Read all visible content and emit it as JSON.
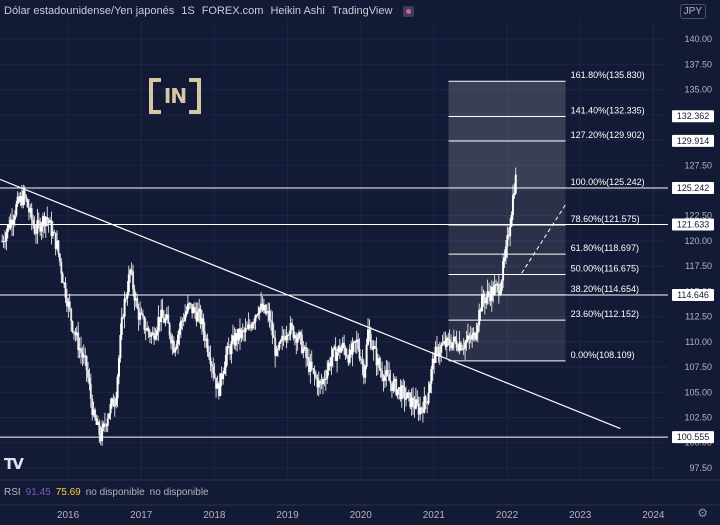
{
  "header": {
    "pair": "Dólar estadounidense/Yen japonés",
    "interval": "1S",
    "exchange": "FOREX.com",
    "chart_style": "Heikin Ashi",
    "platform": "TradingView"
  },
  "currency": "JPY",
  "logo_text": "IN",
  "watermark": "TV",
  "rsi": {
    "label": "RSI",
    "value1": "91.45",
    "value2": "75.69",
    "na1": "no disponible",
    "na2": "no disponible"
  },
  "colors": {
    "background": "#131a35",
    "up_candle": "#ffffff",
    "down_candle": "#ffffff",
    "fib_zone": "#ffffff",
    "lines": "#ffffff",
    "price_label_bg": "#ffffff",
    "price_label_text": "#131a35",
    "grid": "#1d2546"
  },
  "chart_data": {
    "type": "candlestick",
    "x_ticks": [
      "2016",
      "2017",
      "2018",
      "2019",
      "2020",
      "2021",
      "2022",
      "2023",
      "2024"
    ],
    "y_ticks": [
      "97.50",
      "100.00",
      "102.50",
      "105.00",
      "107.50",
      "110.00",
      "112.50",
      "115.00",
      "117.50",
      "120.00",
      "122.50",
      "125.00",
      "127.50",
      "130.00",
      "132.50",
      "135.00",
      "137.50",
      "140.00"
    ],
    "ylim": [
      96.5,
      141.9
    ],
    "xlim": [
      2015.22,
      2024.35
    ],
    "grid": true,
    "close_series": [
      [
        2015.25,
        120.0
      ],
      [
        2015.45,
        123.5
      ],
      [
        2015.55,
        124.5
      ],
      [
        2015.7,
        121.0
      ],
      [
        2015.85,
        122.5
      ],
      [
        2016.0,
        119.5
      ],
      [
        2016.1,
        115.5
      ],
      [
        2016.2,
        112.0
      ],
      [
        2016.3,
        109.5
      ],
      [
        2016.4,
        107.5
      ],
      [
        2016.5,
        102.5
      ],
      [
        2016.6,
        100.5
      ],
      [
        2016.7,
        103.0
      ],
      [
        2016.8,
        104.5
      ],
      [
        2016.9,
        113.0
      ],
      [
        2017.0,
        117.0
      ],
      [
        2017.1,
        113.0
      ],
      [
        2017.2,
        111.5
      ],
      [
        2017.3,
        110.5
      ],
      [
        2017.4,
        112.5
      ],
      [
        2017.5,
        112.0
      ],
      [
        2017.6,
        109.5
      ],
      [
        2017.7,
        112.0
      ],
      [
        2017.8,
        113.5
      ],
      [
        2017.95,
        112.5
      ],
      [
        2018.1,
        108.5
      ],
      [
        2018.2,
        105.0
      ],
      [
        2018.3,
        108.5
      ],
      [
        2018.45,
        110.5
      ],
      [
        2018.6,
        111.0
      ],
      [
        2018.75,
        113.5
      ],
      [
        2018.9,
        112.5
      ],
      [
        2019.0,
        108.5
      ],
      [
        2019.15,
        111.5
      ],
      [
        2019.3,
        110.5
      ],
      [
        2019.45,
        107.5
      ],
      [
        2019.6,
        105.5
      ],
      [
        2019.75,
        108.5
      ],
      [
        2019.9,
        109.5
      ],
      [
        2020.0,
        108.5
      ],
      [
        2020.1,
        110.0
      ],
      [
        2020.2,
        107.0
      ],
      [
        2020.25,
        111.0
      ],
      [
        2020.4,
        107.5
      ],
      [
        2020.55,
        106.0
      ],
      [
        2020.7,
        105.0
      ],
      [
        2020.85,
        104.0
      ],
      [
        2020.95,
        103.3
      ],
      [
        2021.05,
        104.2
      ],
      [
        2021.15,
        108.5
      ],
      [
        2021.25,
        109.5
      ],
      [
        2021.4,
        110.0
      ],
      [
        2021.55,
        109.8
      ],
      [
        2021.7,
        110.5
      ],
      [
        2021.8,
        114.0
      ],
      [
        2021.95,
        115.0
      ],
      [
        2022.05,
        115.5
      ],
      [
        2022.13,
        118.5
      ],
      [
        2022.2,
        122.5
      ],
      [
        2022.25,
        125.5
      ],
      [
        2022.28,
        126.5
      ]
    ],
    "price_labels": [
      "132.362",
      "129.914",
      "125.242",
      "121.633",
      "114.646",
      "100.555"
    ],
    "fib_levels": [
      {
        "label": "161.80%(135.830)",
        "value": 135.83
      },
      {
        "label": "141.40%(132.335)",
        "value": 132.335
      },
      {
        "label": "127.20%(129.902)",
        "value": 129.902
      },
      {
        "label": "100.00%(125.242)",
        "value": 125.242
      },
      {
        "label": "78.60%(121.575)",
        "value": 121.575
      },
      {
        "label": "61.80%(118.697)",
        "value": 118.697
      },
      {
        "label": "50.00%(116.675)",
        "value": 116.675
      },
      {
        "label": "38.20%(114.654)",
        "value": 114.654
      },
      {
        "label": "23.60%(112.152)",
        "value": 112.152
      },
      {
        "label": "0.00%(108.109)",
        "value": 108.109
      }
    ],
    "fib_zone_x": [
      2021.35,
      2022.95
    ],
    "horizontal_lines": [
      125.242,
      121.633,
      114.646,
      100.555
    ],
    "trendline": [
      [
        2015.22,
        126.1
      ],
      [
        2023.7,
        101.4
      ]
    ],
    "projection_line": [
      [
        2022.35,
        116.8
      ],
      [
        2022.95,
        123.6
      ]
    ]
  }
}
